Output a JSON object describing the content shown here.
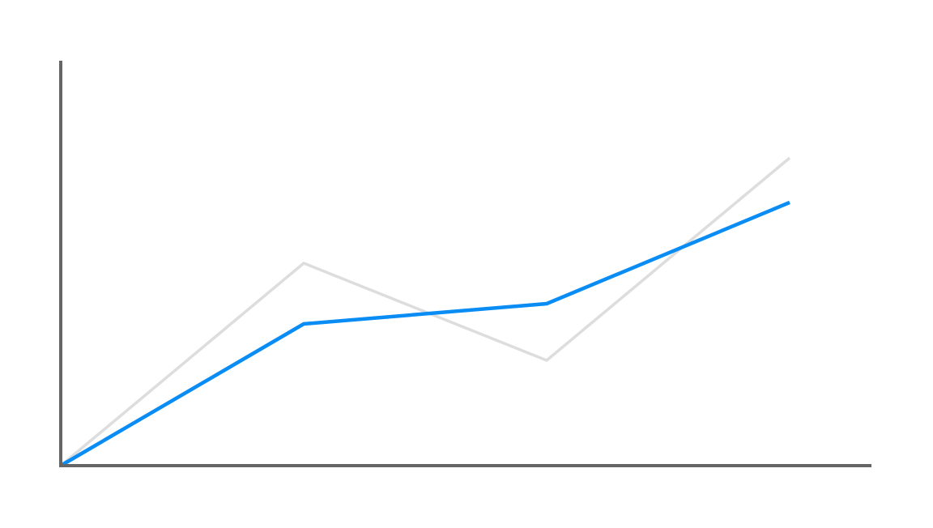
{
  "chart_data": {
    "type": "line",
    "x": [
      0,
      1,
      2,
      3
    ],
    "xlim": [
      0,
      3.3333
    ],
    "ylim": [
      0,
      100
    ],
    "series": [
      {
        "color": "#dddddd",
        "values": [
          0,
          50,
          26,
          76
        ]
      },
      {
        "color": "#0a8cf5",
        "values": [
          0,
          35,
          40,
          65
        ]
      }
    ]
  }
}
